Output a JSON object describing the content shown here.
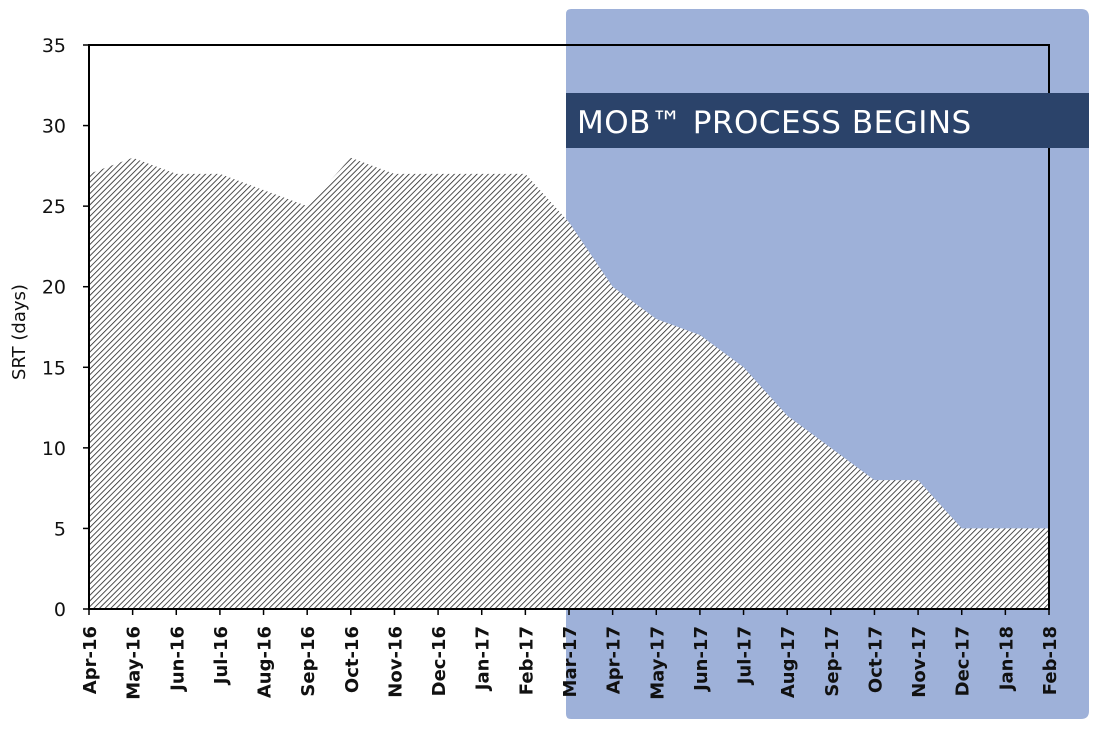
{
  "chart_data": {
    "type": "area",
    "title": "",
    "xlabel": "",
    "ylabel": "SRT (days)",
    "ylim": [
      0,
      35
    ],
    "yticks": [
      0,
      5,
      10,
      15,
      20,
      25,
      30,
      35
    ],
    "categories": [
      "Apr-16",
      "May-16",
      "Jun-16",
      "Jul-16",
      "Aug-16",
      "Sep-16",
      "Oct-16",
      "Nov-16",
      "Dec-16",
      "Jan-17",
      "Feb-17",
      "Mar-17",
      "Apr-17",
      "May-17",
      "Jun-17",
      "Jul-17",
      "Aug-17",
      "Sep-17",
      "Oct-17",
      "Nov-17",
      "Dec-17",
      "Jan-18",
      "Feb-18"
    ],
    "values": [
      27,
      28,
      27,
      27,
      26,
      25,
      28,
      27,
      27,
      27,
      27,
      24,
      20,
      18,
      17,
      15,
      12,
      10,
      8,
      8,
      5,
      5,
      5
    ],
    "grid": false,
    "annotation": {
      "text": "MOB™ PROCESS BEGINS",
      "starts_at": "Mar-17"
    },
    "colors": {
      "highlight_region": "#9eb1d9",
      "banner": "#2b436a",
      "area_hatch": "#222222",
      "axis": "#000000"
    }
  }
}
